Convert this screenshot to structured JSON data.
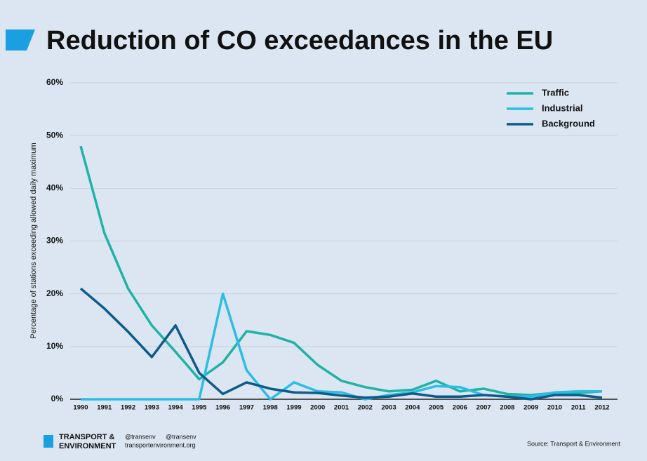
{
  "chart_data": {
    "type": "line",
    "title": "Reduction of CO exceedances in the EU",
    "y_label": "Percentage of stations exceeding allowed daily maximum",
    "categories": [
      "1990",
      "1991",
      "1992",
      "1993",
      "1994",
      "1995",
      "1996",
      "1997",
      "1998",
      "1999",
      "2000",
      "2001",
      "2002",
      "2003",
      "2004",
      "2005",
      "2006",
      "2007",
      "2008",
      "2009",
      "2010",
      "2011",
      "2012"
    ],
    "series": [
      {
        "name": "Traffic",
        "color": "#1fb3a5",
        "values": [
          48,
          31.5,
          21,
          14,
          9,
          3.8,
          7,
          12.9,
          12.2,
          10.7,
          6.5,
          3.5,
          2.3,
          1.5,
          1.8,
          3.5,
          1.5,
          2,
          1,
          0.8,
          1.2,
          1.2,
          1.5
        ]
      },
      {
        "name": "Industrial",
        "color": "#2bbde6",
        "values": [
          0,
          0,
          0,
          0,
          0,
          0,
          20,
          5.5,
          0,
          3.2,
          1.5,
          1.3,
          0,
          0.8,
          1.3,
          2.5,
          2.3,
          0.8,
          0.5,
          0.5,
          1.3,
          1.5,
          1.5
        ]
      },
      {
        "name": "Background",
        "color": "#0e5a8a",
        "values": [
          21,
          17.2,
          12.8,
          8,
          14,
          5,
          1,
          3.2,
          2,
          1.3,
          1.2,
          0.7,
          0.3,
          0.5,
          1.1,
          0.5,
          0.5,
          0.8,
          0.5,
          0,
          0.8,
          0.8,
          0.3
        ]
      }
    ],
    "ylim": [
      0,
      60
    ],
    "yticks": [
      {
        "value": 0,
        "label": "0%"
      },
      {
        "value": 10,
        "label": "10%"
      },
      {
        "value": 20,
        "label": "20%"
      },
      {
        "value": 30,
        "label": "30%"
      },
      {
        "value": 40,
        "label": "40%"
      },
      {
        "value": 50,
        "label": "50%"
      },
      {
        "value": 60,
        "label": "60%"
      }
    ],
    "grid": true,
    "legend": "upper right"
  },
  "footer": {
    "brand_line1": "TRANSPORT &",
    "brand_line2": "ENVIRONMENT",
    "twitter": "@transenv",
    "facebook": "@transenv",
    "website": "transportenvironment.org",
    "source": "Source: Transport & Environment"
  }
}
